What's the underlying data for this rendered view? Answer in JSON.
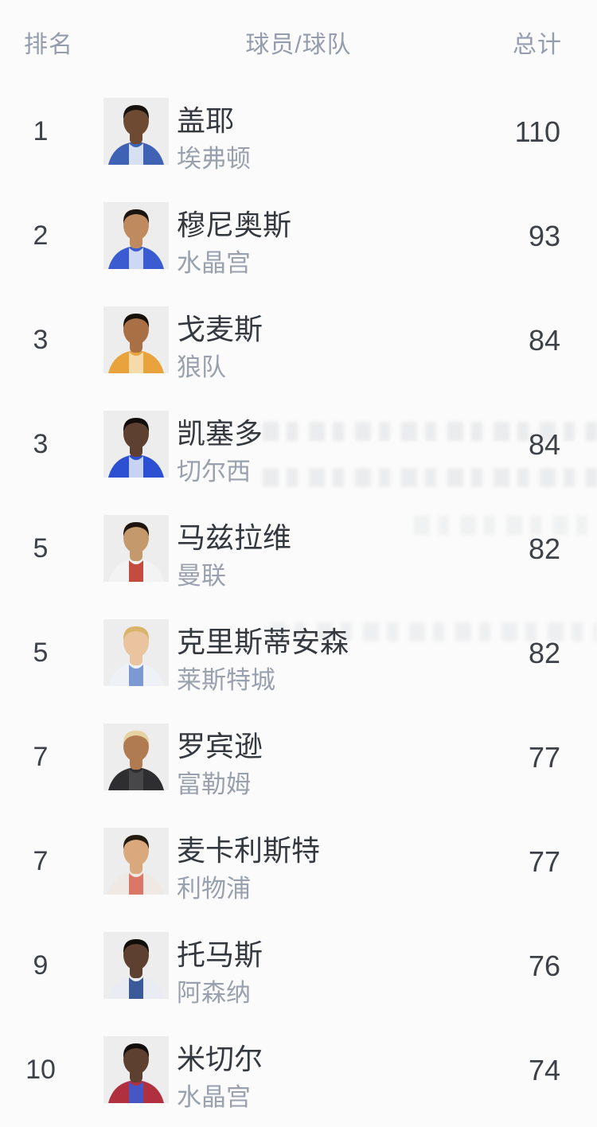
{
  "table": {
    "headers": {
      "rank": "排名",
      "player_team": "球员/球队",
      "total": "总计"
    },
    "rows": [
      {
        "rank": "1",
        "player": "盖耶",
        "team": "埃弗顿",
        "total": "110",
        "avatar": {
          "skin": "#6e4a33",
          "hair": "#17120e",
          "shirt": "#3f62b4",
          "accent": "#e8eef8"
        }
      },
      {
        "rank": "2",
        "player": "穆尼奥斯",
        "team": "水晶宫",
        "total": "93",
        "avatar": {
          "skin": "#c08a5f",
          "hair": "#1b140e",
          "shirt": "#3b5bd0",
          "accent": "#dfe6f6"
        }
      },
      {
        "rank": "3",
        "player": "戈麦斯",
        "team": "狼队",
        "total": "84",
        "avatar": {
          "skin": "#a97045",
          "hair": "#17110c",
          "shirt": "#e8a33d",
          "accent": "#f6e1b8"
        }
      },
      {
        "rank": "3",
        "player": "凯塞多",
        "team": "切尔西",
        "total": "84",
        "avatar": {
          "skin": "#5d4030",
          "hair": "#120d0a",
          "shirt": "#2d4fd2",
          "accent": "#d9e0f5"
        }
      },
      {
        "rank": "5",
        "player": "马兹拉维",
        "team": "曼联",
        "total": "82",
        "avatar": {
          "skin": "#c49a6c",
          "hair": "#1d150e",
          "shirt": "#f3f3f3",
          "accent": "#c0392b"
        }
      },
      {
        "rank": "5",
        "player": "克里斯蒂安森",
        "team": "莱斯特城",
        "total": "82",
        "avatar": {
          "skin": "#e9c49e",
          "hair": "#d9b36a",
          "shirt": "#eef1f5",
          "accent": "#6f8fd0"
        }
      },
      {
        "rank": "7",
        "player": "罗宾逊",
        "team": "富勒姆",
        "total": "77",
        "avatar": {
          "skin": "#b07b50",
          "hair": "#e6d3a1",
          "shirt": "#2e2e30",
          "accent": "#4a4a4e"
        }
      },
      {
        "rank": "7",
        "player": "麦卡利斯特",
        "team": "利物浦",
        "total": "77",
        "avatar": {
          "skin": "#d9a87c",
          "hair": "#241a10",
          "shirt": "#f0e8e2",
          "accent": "#d86a5a"
        }
      },
      {
        "rank": "9",
        "player": "托马斯",
        "team": "阿森纳",
        "total": "76",
        "avatar": {
          "skin": "#5d4030",
          "hair": "#110d09",
          "shirt": "#e9ecf2",
          "accent": "#274a8f"
        }
      },
      {
        "rank": "10",
        "player": "米切尔",
        "team": "水晶宫",
        "total": "74",
        "avatar": {
          "skin": "#5d4030",
          "hair": "#120d0a",
          "shirt": "#b03040",
          "accent": "#3b5bd0"
        }
      }
    ]
  },
  "colors": {
    "page_background": "#fbfbfb",
    "header_text": "#949cad",
    "rank_text": "#3d4148",
    "name_text": "#34383f",
    "team_text": "#99a1ae",
    "total_text": "#3d4148",
    "avatar_background": "#ededed"
  }
}
